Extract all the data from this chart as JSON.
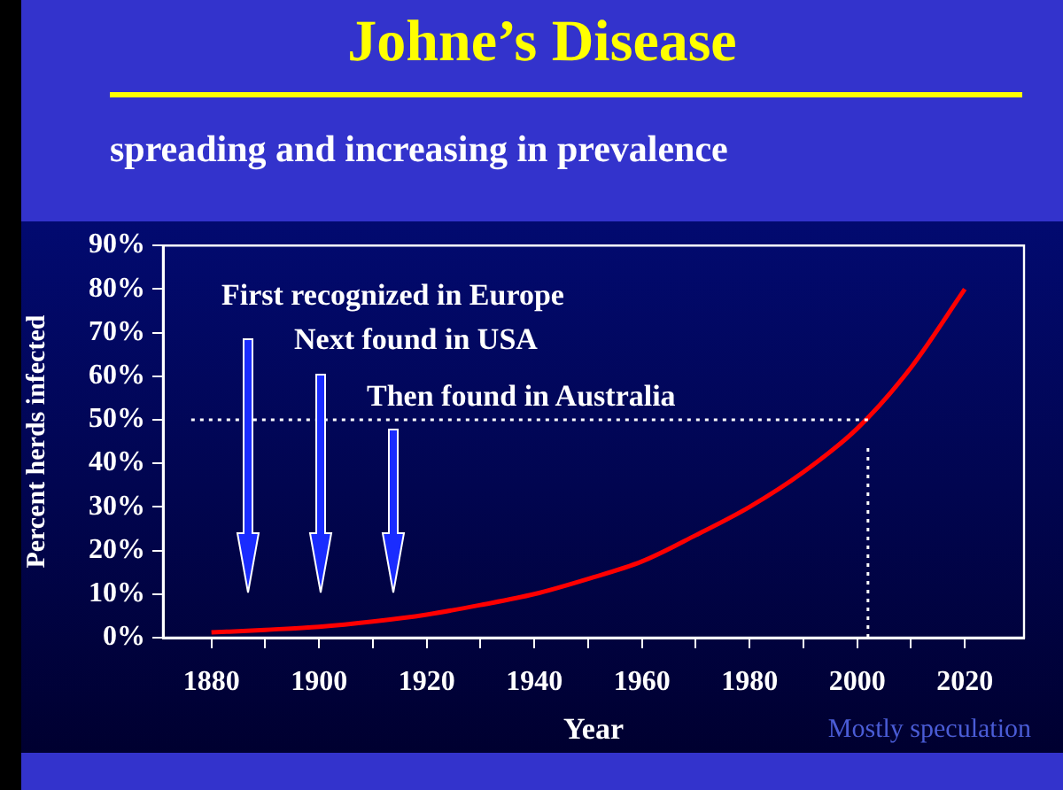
{
  "chart_data": {
    "type": "line",
    "title": "Johne’s Disease",
    "subtitle": "spreading and increasing in prevalence",
    "xlabel": "Year",
    "ylabel": "Percent herds infected",
    "x": [
      1880,
      1890,
      1900,
      1910,
      1920,
      1930,
      1940,
      1950,
      1960,
      1970,
      1980,
      1990,
      2000,
      2010,
      2020
    ],
    "series": [
      {
        "color": "#ff0000",
        "values": [
          1.2,
          1.8,
          2.5,
          3.7,
          5.3,
          7.5,
          10,
          13.5,
          17.5,
          23.5,
          30,
          38,
          48,
          62,
          80
        ]
      }
    ],
    "xlim": [
      1871,
      2031
    ],
    "xticks": [
      {
        "value": 1880,
        "label": "1880"
      },
      {
        "value": 1890,
        "label": null
      },
      {
        "value": 1900,
        "label": "1900"
      },
      {
        "value": 1910,
        "label": null
      },
      {
        "value": 1920,
        "label": "1920"
      },
      {
        "value": 1930,
        "label": null
      },
      {
        "value": 1940,
        "label": "1940"
      },
      {
        "value": 1950,
        "label": null
      },
      {
        "value": 1960,
        "label": "1960"
      },
      {
        "value": 1970,
        "label": null
      },
      {
        "value": 1980,
        "label": "1980"
      },
      {
        "value": 1990,
        "label": null
      },
      {
        "value": 2000,
        "label": "2000"
      },
      {
        "value": 2010,
        "label": null
      },
      {
        "value": 2020,
        "label": "2020"
      }
    ],
    "ylim": [
      0,
      90
    ],
    "yticks": [
      {
        "value": 0,
        "label": "0%"
      },
      {
        "value": 10,
        "label": "10%"
      },
      {
        "value": 20,
        "label": "20%"
      },
      {
        "value": 30,
        "label": "30%"
      },
      {
        "value": 40,
        "label": "40%"
      },
      {
        "value": 50,
        "label": "50%"
      },
      {
        "value": 60,
        "label": "60%"
      },
      {
        "value": 70,
        "label": "70%"
      },
      {
        "value": 80,
        "label": "80%"
      },
      {
        "value": 90,
        "label": "90%"
      }
    ],
    "ref_lines": [
      {
        "axis": "y",
        "value": 50,
        "color": "#ffffff",
        "line_style": "dotted"
      },
      {
        "axis": "x",
        "value": 2002,
        "color": "#ffffff",
        "line_style": "dotted"
      }
    ],
    "annotations": [
      "First recognized in Europe",
      "Next found in USA",
      "Then found in Australia",
      "Mostly speculation"
    ],
    "grid": false,
    "legend": false,
    "marker": "none",
    "line_style": "solid"
  }
}
